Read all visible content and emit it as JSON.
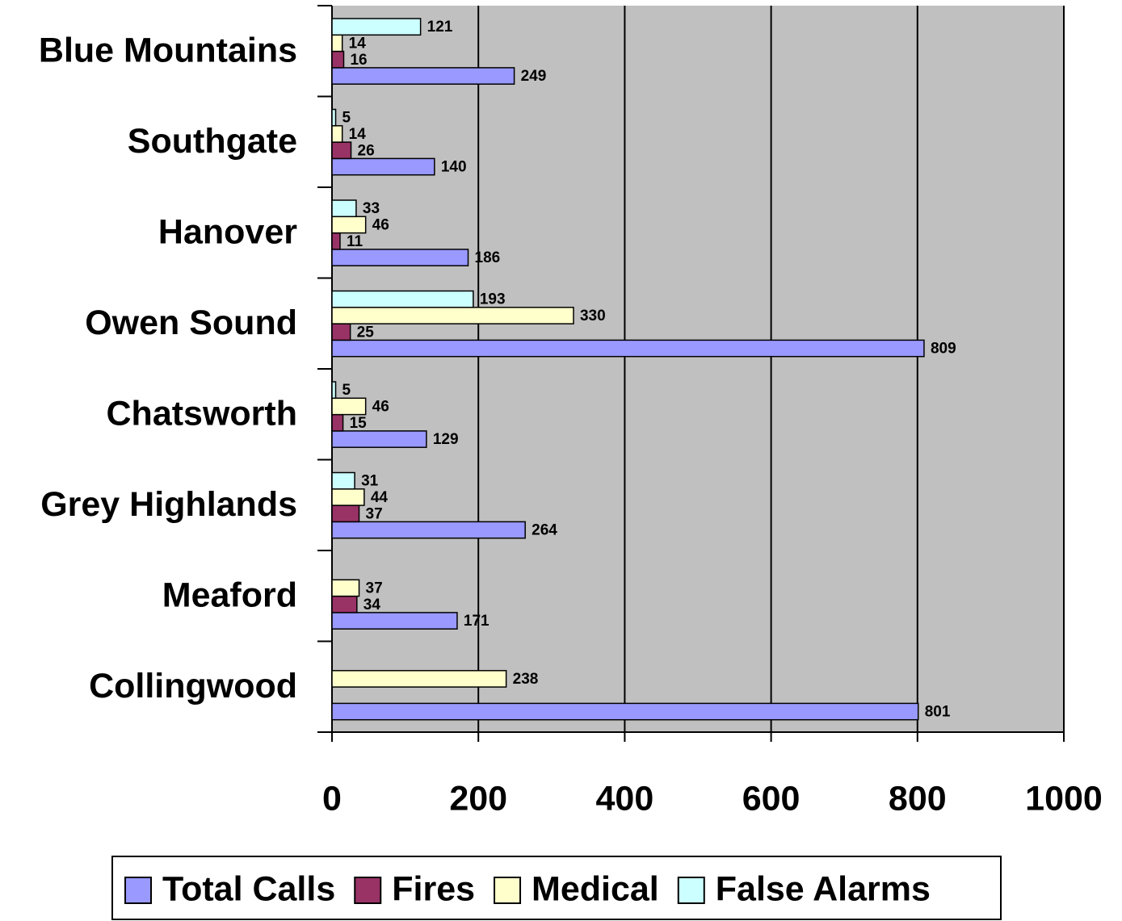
{
  "chart_data": {
    "type": "bar",
    "orientation": "horizontal",
    "categories": [
      "Blue Mountains",
      "Southgate",
      "Hanover",
      "Owen Sound",
      "Chatsworth",
      "Grey Highlands",
      "Meaford",
      "Collingwood"
    ],
    "series": [
      {
        "name": "Total Calls",
        "color": "#9999ff",
        "values": [
          249,
          140,
          186,
          809,
          129,
          264,
          171,
          801
        ]
      },
      {
        "name": "Fires",
        "color": "#993366",
        "values": [
          16,
          26,
          11,
          25,
          15,
          37,
          34,
          null
        ]
      },
      {
        "name": "Medical",
        "color": "#ffffcc",
        "values": [
          14,
          14,
          46,
          330,
          46,
          44,
          37,
          238
        ]
      },
      {
        "name": "False Alarms",
        "color": "#ccffff",
        "values": [
          121,
          5,
          33,
          193,
          5,
          31,
          null,
          null
        ]
      }
    ],
    "xlim": [
      0,
      1000
    ],
    "xticks": [
      0,
      200,
      400,
      600,
      800,
      1000
    ],
    "grid": true,
    "plot_background": "#c0c0c0",
    "legend": "bottom"
  }
}
